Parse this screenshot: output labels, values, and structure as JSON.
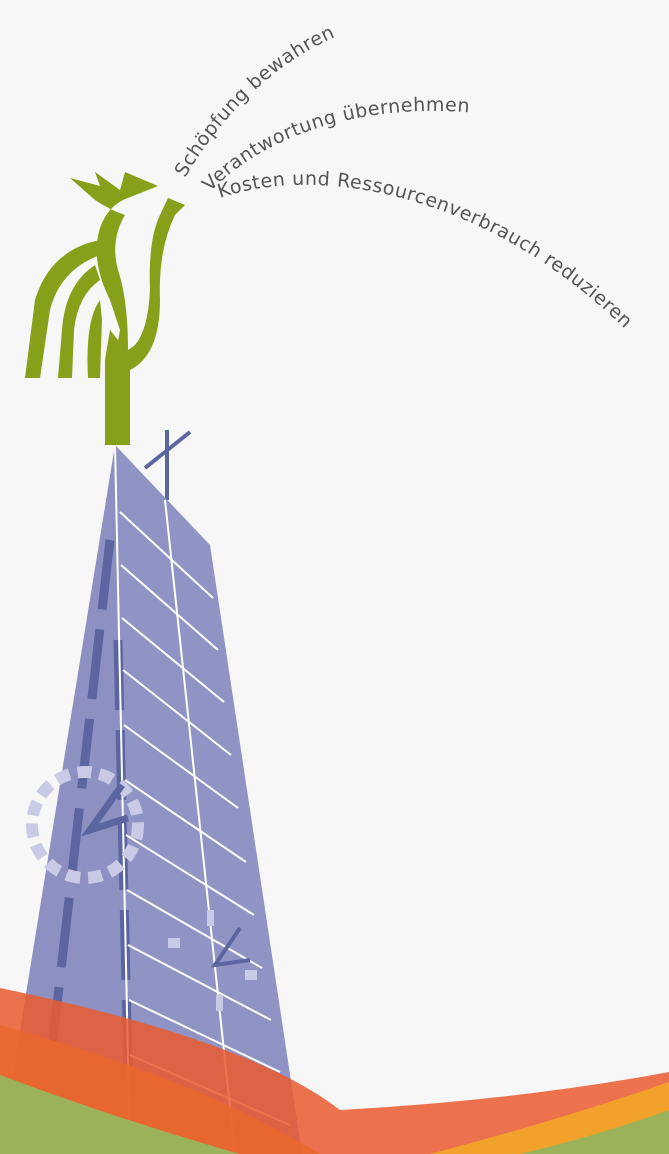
{
  "slogans": [
    "Schöpfung bewahren",
    "Verantwortung übernehmen",
    "Kosten und Ressourcenverbrauch reduzieren"
  ]
}
